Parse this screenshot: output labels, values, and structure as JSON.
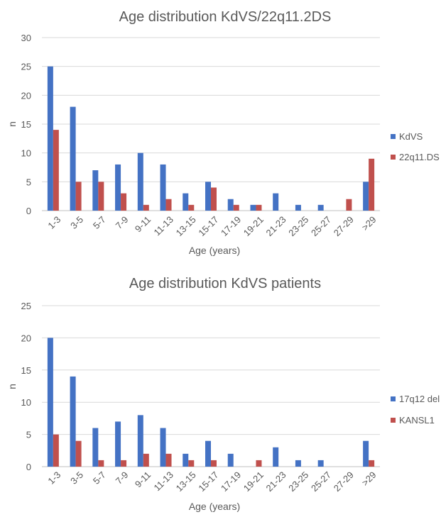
{
  "chart_data": [
    {
      "type": "bar",
      "title": "Age distribution KdVS/22q11.2DS",
      "xlabel": "Age (years)",
      "ylabel": "n",
      "ylim": [
        0,
        30
      ],
      "yticks": [
        0,
        5,
        10,
        15,
        20,
        25,
        30
      ],
      "grid": true,
      "legend_position": "right",
      "categories": [
        "1-3",
        "3-5",
        "5-7",
        "7-9",
        "9-11",
        "11-13",
        "13-15",
        "15-17",
        "17-19",
        "19-21",
        "21-23",
        "23-25",
        "25-27",
        "27-29",
        ">29"
      ],
      "series": [
        {
          "name": "KdVS",
          "color": "#4472c4",
          "values": [
            25,
            18,
            7,
            8,
            10,
            8,
            3,
            5,
            2,
            1,
            3,
            1,
            1,
            0,
            5
          ]
        },
        {
          "name": "22q11.DS",
          "color": "#c0504d",
          "values": [
            14,
            5,
            5,
            3,
            1,
            2,
            1,
            4,
            1,
            1,
            0,
            0,
            0,
            2,
            9
          ]
        }
      ]
    },
    {
      "type": "bar",
      "title": "Age distribution KdVS patients",
      "xlabel": "Age (years)",
      "ylabel": "n",
      "ylim": [
        0,
        25
      ],
      "yticks": [
        0,
        5,
        10,
        15,
        20,
        25
      ],
      "grid": true,
      "legend_position": "right",
      "categories": [
        "1-3",
        "3-5",
        "5-7",
        "7-9",
        "9-11",
        "11-13",
        "13-15",
        "15-17",
        "17-19",
        "19-21",
        "21-23",
        "23-25",
        "25-27",
        "27-29",
        ">29"
      ],
      "series": [
        {
          "name": "17q12 del",
          "color": "#4472c4",
          "values": [
            20,
            14,
            6,
            7,
            8,
            6,
            2,
            4,
            2,
            0,
            3,
            1,
            1,
            0,
            4
          ]
        },
        {
          "name": "KANSL1",
          "color": "#c0504d",
          "values": [
            5,
            4,
            1,
            1,
            2,
            2,
            1,
            1,
            0,
            1,
            0,
            0,
            0,
            0,
            1
          ]
        }
      ]
    }
  ]
}
